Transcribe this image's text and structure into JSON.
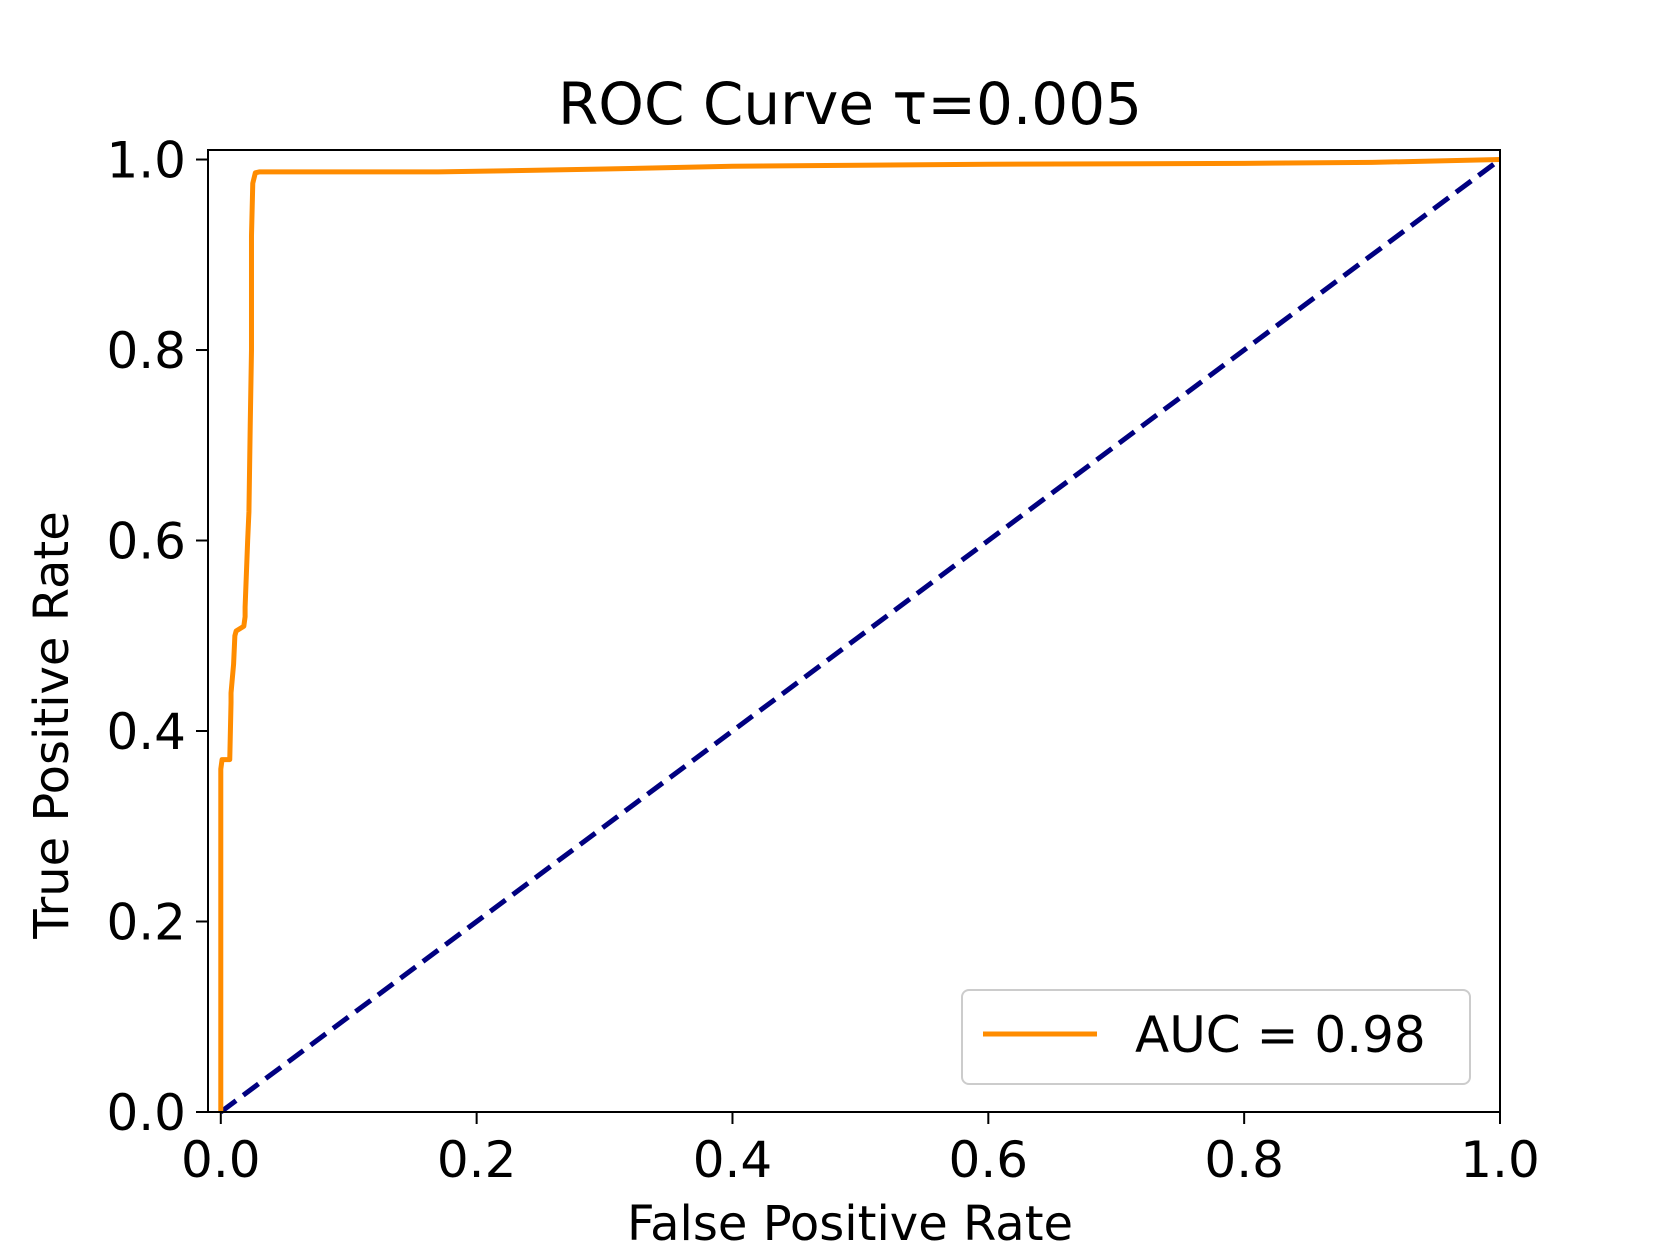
{
  "chart_data": {
    "type": "line",
    "title": "ROC Curve τ=0.005",
    "xlabel": "False Positive Rate",
    "ylabel": "True Positive Rate",
    "xlim": [
      -0.01,
      1.0
    ],
    "ylim": [
      0.0,
      1.01
    ],
    "xticks": [
      0.0,
      0.2,
      0.4,
      0.6,
      0.8,
      1.0
    ],
    "yticks": [
      0.0,
      0.2,
      0.4,
      0.6,
      0.8,
      1.0
    ],
    "xtick_labels": [
      "0.0",
      "0.2",
      "0.4",
      "0.6",
      "0.8",
      "1.0"
    ],
    "ytick_labels": [
      "0.0",
      "0.2",
      "0.4",
      "0.6",
      "0.8",
      "1.0"
    ],
    "grid": false,
    "legend_position": "lower-right",
    "series": [
      {
        "name": "AUC = 0.98",
        "color": "#ff8c00",
        "style": "solid",
        "x": [
          0.0,
          0.0,
          0.001,
          0.001,
          0.005,
          0.007,
          0.008,
          0.008,
          0.01,
          0.011,
          0.012,
          0.018,
          0.019,
          0.019,
          0.021,
          0.022,
          0.023,
          0.024,
          0.024,
          0.025,
          0.027,
          0.03,
          0.1,
          0.17,
          0.3,
          0.4,
          0.6,
          0.8,
          0.9,
          1.0
        ],
        "y": [
          0.0,
          0.36,
          0.37,
          0.37,
          0.37,
          0.37,
          0.43,
          0.44,
          0.47,
          0.5,
          0.505,
          0.51,
          0.52,
          0.53,
          0.6,
          0.63,
          0.72,
          0.8,
          0.92,
          0.975,
          0.986,
          0.987,
          0.987,
          0.987,
          0.99,
          0.993,
          0.995,
          0.996,
          0.997,
          1.0
        ]
      },
      {
        "name": "",
        "color": "#000080",
        "style": "dashed",
        "x": [
          0.0,
          1.0
        ],
        "y": [
          0.0,
          1.0
        ]
      }
    ]
  }
}
